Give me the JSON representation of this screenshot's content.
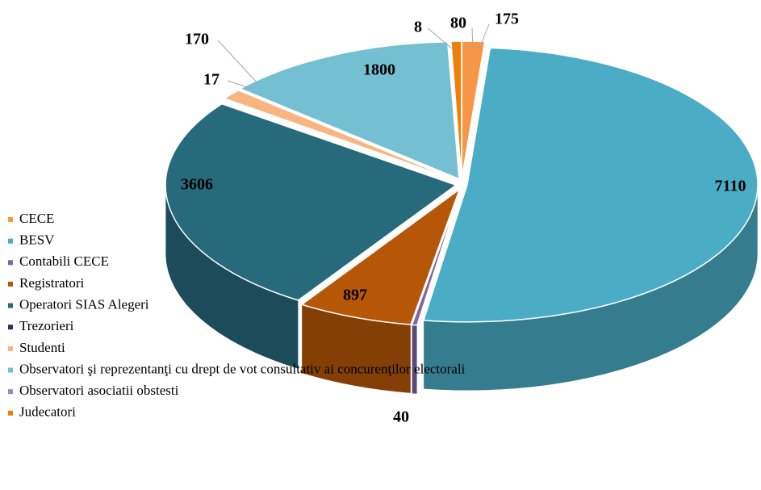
{
  "chart_data": {
    "type": "pie",
    "categories": [
      "CECE",
      "BESV",
      "Contabili CECE",
      "Registratori",
      "Operatori SIAS Alegeri",
      "Trezorieri",
      "Studenti",
      "Observatori şi reprezentanţi cu drept de vot consultativ ai concurenţilor electorali",
      "Observatori asociatii obstesti",
      "Judecatori"
    ],
    "values": [
      175,
      7110,
      40,
      897,
      3606,
      17,
      170,
      1800,
      8,
      80
    ],
    "colors": [
      "#f79646",
      "#4bacc6",
      "#8064a2",
      "#b65708",
      "#276a7c",
      "#3a2f55",
      "#f9b47f",
      "#75bfd3",
      "#9d89b8",
      "#f07f09"
    ],
    "legend": "left"
  }
}
